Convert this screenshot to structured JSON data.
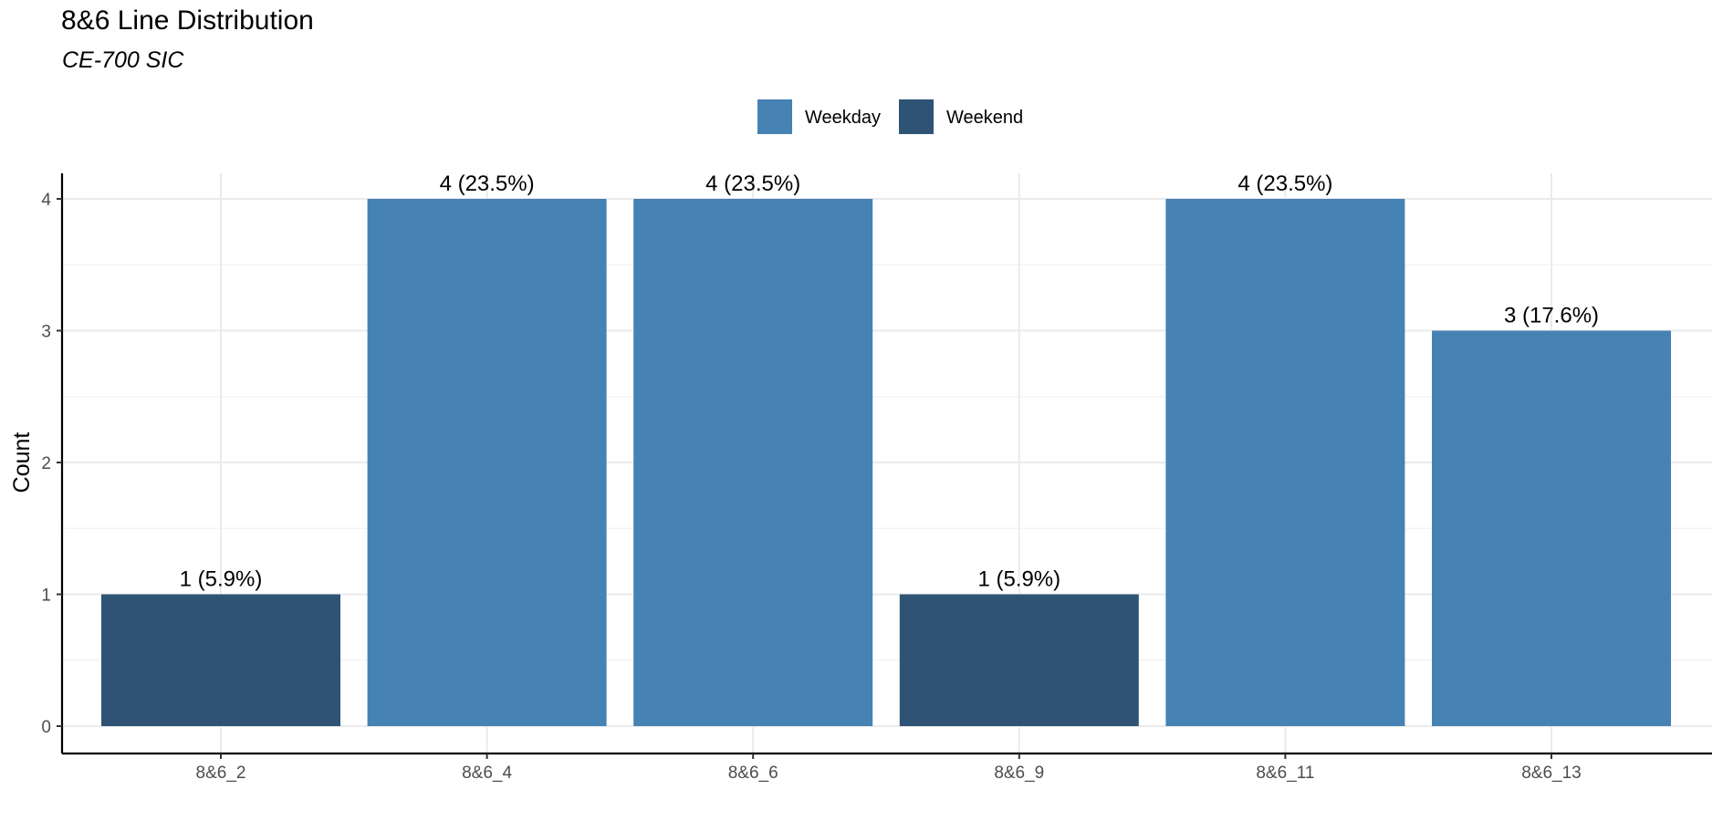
{
  "chart_data": {
    "type": "bar",
    "title": "8&6 Line Distribution",
    "subtitle": "CE-700 SIC",
    "xlabel": "",
    "ylabel": "Count",
    "ylim": [
      0,
      4
    ],
    "yticks": [
      0,
      1,
      2,
      3,
      4
    ],
    "grid": true,
    "legend_position": "top",
    "categories": [
      "8&6_2",
      "8&6_4",
      "8&6_6",
      "8&6_9",
      "8&6_11",
      "8&6_13"
    ],
    "values": [
      1,
      4,
      4,
      1,
      4,
      3
    ],
    "groups": [
      "Weekend",
      "Weekday",
      "Weekday",
      "Weekend",
      "Weekday",
      "Weekday"
    ],
    "data_labels": [
      "1 (5.9%)",
      "4 (23.5%)",
      "4 (23.5%)",
      "1 (5.9%)",
      "4 (23.5%)",
      "3 (17.6%)"
    ],
    "legend": [
      {
        "name": "Weekday",
        "color": "#4682b4"
      },
      {
        "name": "Weekend",
        "color": "#2e5374"
      }
    ]
  }
}
